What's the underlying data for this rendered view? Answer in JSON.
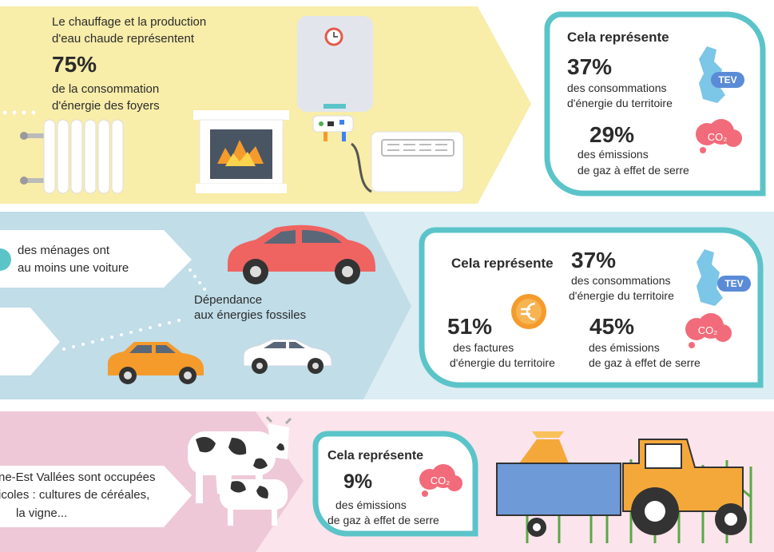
{
  "heating": {
    "intro": [
      "Le chauffage et la production",
      "d'eau chaude représentent"
    ],
    "percent": "75%",
    "detail": [
      "de la consommation",
      "d'énergie des foyers"
    ],
    "summary": {
      "title": "Cela représente",
      "energy": {
        "percent": "37%",
        "lines": [
          "des consommations",
          "d'énergie du territoire"
        ],
        "badge": "TEV"
      },
      "emissions": {
        "percent": "29%",
        "lines": [
          "des émissions",
          "de gaz à effet de serre"
        ],
        "badge": "CO₂"
      }
    }
  },
  "transport": {
    "households": [
      "des ménages ont",
      "au moins une voiture"
    ],
    "dependence": [
      "Dépendance",
      "aux énergies fossiles"
    ],
    "summary": {
      "title": "Cela représente",
      "energy": {
        "percent": "37%",
        "lines": [
          "des consommations",
          "d'énergie du territoire"
        ],
        "badge": "TEV"
      },
      "bills": {
        "percent": "51%",
        "lines": [
          "des factures",
          "d'énergie du territoire"
        ]
      },
      "emissions": {
        "percent": "45%",
        "lines": [
          "des émissions",
          "de gaz à effet de serre"
        ],
        "badge": "CO₂"
      }
    }
  },
  "agriculture": {
    "land": [
      "ne-Est Vallées sont occupées",
      "icoles : cultures de céréales,",
      "la vigne..."
    ],
    "summary": {
      "title": "Cela représente",
      "emissions": {
        "percent": "9%",
        "lines": [
          "des émissions",
          "de gaz à effet de serre"
        ],
        "badge": "CO₂"
      }
    }
  }
}
